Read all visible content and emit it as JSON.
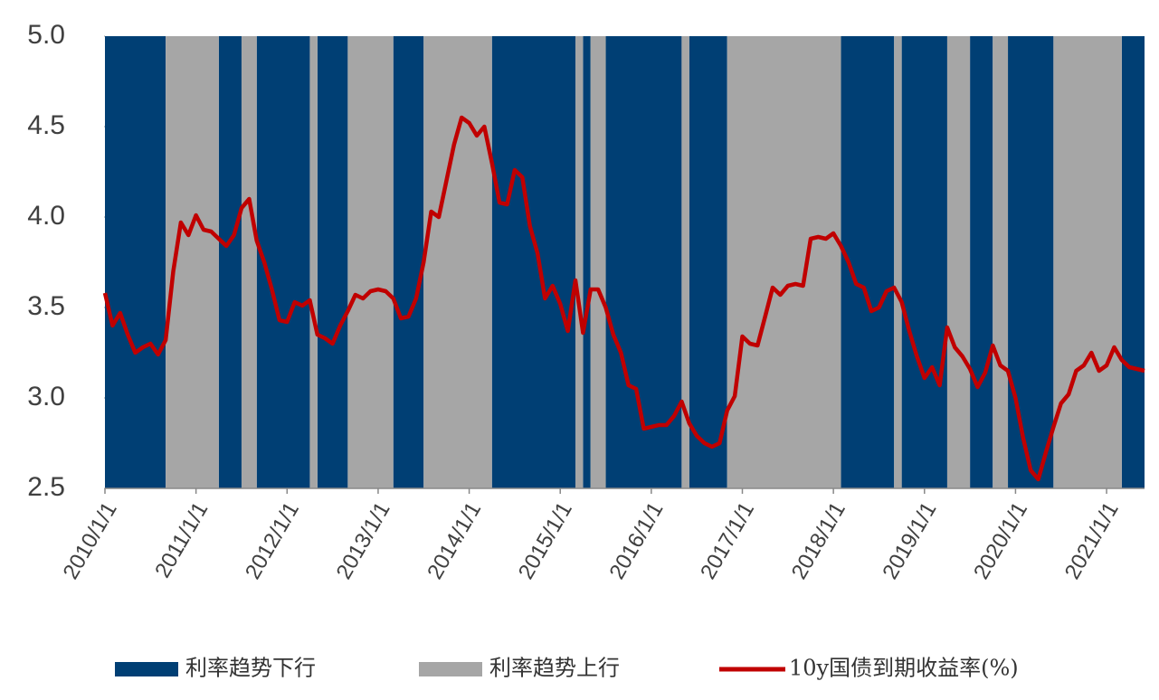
{
  "chart_data": {
    "type": "line",
    "x": [
      "2010/1/1",
      "2010/2/1",
      "2010/3/1",
      "2010/4/1",
      "2010/5/1",
      "2010/6/1",
      "2010/7/1",
      "2010/8/1",
      "2010/9/1",
      "2010/10/1",
      "2010/11/1",
      "2010/12/1",
      "2011/1/1",
      "2011/2/1",
      "2011/3/1",
      "2011/4/1",
      "2011/5/1",
      "2011/6/1",
      "2011/7/1",
      "2011/8/1",
      "2011/9/1",
      "2011/10/1",
      "2011/11/1",
      "2011/12/1",
      "2012/1/1",
      "2012/2/1",
      "2012/3/1",
      "2012/4/1",
      "2012/5/1",
      "2012/6/1",
      "2012/7/1",
      "2012/8/1",
      "2012/9/1",
      "2012/10/1",
      "2012/11/1",
      "2012/12/1",
      "2013/1/1",
      "2013/2/1",
      "2013/3/1",
      "2013/4/1",
      "2013/5/1",
      "2013/6/1",
      "2013/7/1",
      "2013/8/1",
      "2013/9/1",
      "2013/10/1",
      "2013/11/1",
      "2013/12/1",
      "2014/1/1",
      "2014/2/1",
      "2014/3/1",
      "2014/4/1",
      "2014/5/1",
      "2014/6/1",
      "2014/7/1",
      "2014/8/1",
      "2014/9/1",
      "2014/10/1",
      "2014/11/1",
      "2014/12/1",
      "2015/1/1",
      "2015/2/1",
      "2015/3/1",
      "2015/4/1",
      "2015/5/1",
      "2015/6/1",
      "2015/7/1",
      "2015/8/1",
      "2015/9/1",
      "2015/10/1",
      "2015/11/1",
      "2015/12/1",
      "2016/1/1",
      "2016/2/1",
      "2016/3/1",
      "2016/4/1",
      "2016/5/1",
      "2016/6/1",
      "2016/7/1",
      "2016/8/1",
      "2016/9/1",
      "2016/10/1",
      "2016/11/1",
      "2016/12/1",
      "2017/1/1",
      "2017/2/1",
      "2017/3/1",
      "2017/4/1",
      "2017/5/1",
      "2017/6/1",
      "2017/7/1",
      "2017/8/1",
      "2017/9/1",
      "2017/10/1",
      "2017/11/1",
      "2017/12/1",
      "2018/1/1",
      "2018/2/1",
      "2018/3/1",
      "2018/4/1",
      "2018/5/1",
      "2018/6/1",
      "2018/7/1",
      "2018/8/1",
      "2018/9/1",
      "2018/10/1",
      "2018/11/1",
      "2018/12/1",
      "2019/1/1",
      "2019/2/1",
      "2019/3/1",
      "2019/4/1",
      "2019/5/1",
      "2019/6/1",
      "2019/7/1",
      "2019/8/1",
      "2019/9/1",
      "2019/10/1",
      "2019/11/1",
      "2019/12/1",
      "2020/1/1",
      "2020/2/1",
      "2020/3/1",
      "2020/4/1",
      "2020/5/1",
      "2020/6/1",
      "2020/7/1",
      "2020/8/1",
      "2020/9/1",
      "2020/10/1",
      "2020/11/1",
      "2020/12/1",
      "2021/1/1",
      "2021/2/1",
      "2021/3/1",
      "2021/4/1",
      "2021/5/1",
      "2021/6/1"
    ],
    "series": [
      {
        "name": "10y国债到期收益率(%)",
        "color": "#c00000",
        "values": [
          3.58,
          3.4,
          3.47,
          3.35,
          3.25,
          3.28,
          3.3,
          3.24,
          3.32,
          3.7,
          3.97,
          3.9,
          4.01,
          3.93,
          3.92,
          3.88,
          3.84,
          3.9,
          4.05,
          4.1,
          3.87,
          3.75,
          3.6,
          3.43,
          3.42,
          3.53,
          3.51,
          3.54,
          3.35,
          3.33,
          3.3,
          3.4,
          3.48,
          3.57,
          3.55,
          3.59,
          3.6,
          3.59,
          3.55,
          3.44,
          3.45,
          3.55,
          3.75,
          4.03,
          4.0,
          4.2,
          4.4,
          4.55,
          4.52,
          4.45,
          4.5,
          4.3,
          4.08,
          4.07,
          4.26,
          4.22,
          3.95,
          3.8,
          3.55,
          3.62,
          3.52,
          3.37,
          3.65,
          3.36,
          3.6,
          3.6,
          3.5,
          3.35,
          3.25,
          3.07,
          3.05,
          2.83,
          2.84,
          2.85,
          2.85,
          2.9,
          2.98,
          2.86,
          2.79,
          2.75,
          2.73,
          2.75,
          2.93,
          3.01,
          3.34,
          3.3,
          3.29,
          3.45,
          3.61,
          3.57,
          3.62,
          3.63,
          3.62,
          3.88,
          3.89,
          3.88,
          3.91,
          3.84,
          3.75,
          3.63,
          3.61,
          3.48,
          3.5,
          3.59,
          3.61,
          3.53,
          3.37,
          3.23,
          3.11,
          3.17,
          3.07,
          3.39,
          3.28,
          3.23,
          3.16,
          3.06,
          3.14,
          3.29,
          3.18,
          3.15,
          3.0,
          2.78,
          2.6,
          2.55,
          2.7,
          2.84,
          2.97,
          3.02,
          3.15,
          3.18,
          3.25,
          3.15,
          3.18,
          3.28,
          3.21,
          3.17,
          3.16,
          3.15
        ]
      }
    ],
    "regimes": [
      {
        "name": "利率趋势下行",
        "color": "#003f74",
        "periods": [
          [
            "2010/1/1",
            "2010/9/1"
          ],
          [
            "2011/4/1",
            "2011/7/1"
          ],
          [
            "2011/9/1",
            "2012/4/1"
          ],
          [
            "2012/5/1",
            "2012/9/1"
          ],
          [
            "2013/3/1",
            "2013/7/1"
          ],
          [
            "2014/4/1",
            "2015/3/1"
          ],
          [
            "2015/4/1",
            "2015/5/1"
          ],
          [
            "2015/7/1",
            "2016/5/1"
          ],
          [
            "2016/6/1",
            "2016/11/1"
          ],
          [
            "2018/2/1",
            "2018/9/1"
          ],
          [
            "2018/10/1",
            "2019/4/1"
          ],
          [
            "2019/7/1",
            "2019/10/1"
          ],
          [
            "2019/12/1",
            "2020/6/1"
          ],
          [
            "2021/3/1",
            "2021/6/1"
          ]
        ]
      },
      {
        "name": "利率趋势上行",
        "color": "#a6a6a6",
        "periods": [
          [
            "2010/9/1",
            "2011/4/1"
          ],
          [
            "2011/7/1",
            "2011/9/1"
          ],
          [
            "2012/4/1",
            "2012/5/1"
          ],
          [
            "2012/9/1",
            "2013/3/1"
          ],
          [
            "2013/7/1",
            "2014/4/1"
          ],
          [
            "2015/3/1",
            "2015/4/1"
          ],
          [
            "2015/5/1",
            "2015/7/1"
          ],
          [
            "2016/5/1",
            "2016/6/1"
          ],
          [
            "2016/11/1",
            "2018/2/1"
          ],
          [
            "2018/9/1",
            "2018/10/1"
          ],
          [
            "2019/4/1",
            "2019/7/1"
          ],
          [
            "2019/10/1",
            "2019/12/1"
          ],
          [
            "2020/6/1",
            "2021/3/1"
          ]
        ]
      }
    ],
    "xlim": [
      "2010/1/1",
      "2021/6/1"
    ],
    "xticks": [
      "2010/1/1",
      "2011/1/1",
      "2012/1/1",
      "2013/1/1",
      "2014/1/1",
      "2015/1/1",
      "2016/1/1",
      "2017/1/1",
      "2018/1/1",
      "2019/1/1",
      "2020/1/1",
      "2021/1/1"
    ],
    "ylim": [
      2.5,
      5
    ],
    "yticks": [
      2.5,
      {
        "value": 3,
        "label": "3.0"
      },
      3.5,
      {
        "value": 4,
        "label": "4.0"
      },
      4.5,
      {
        "value": 5,
        "label": "5.0"
      }
    ]
  }
}
